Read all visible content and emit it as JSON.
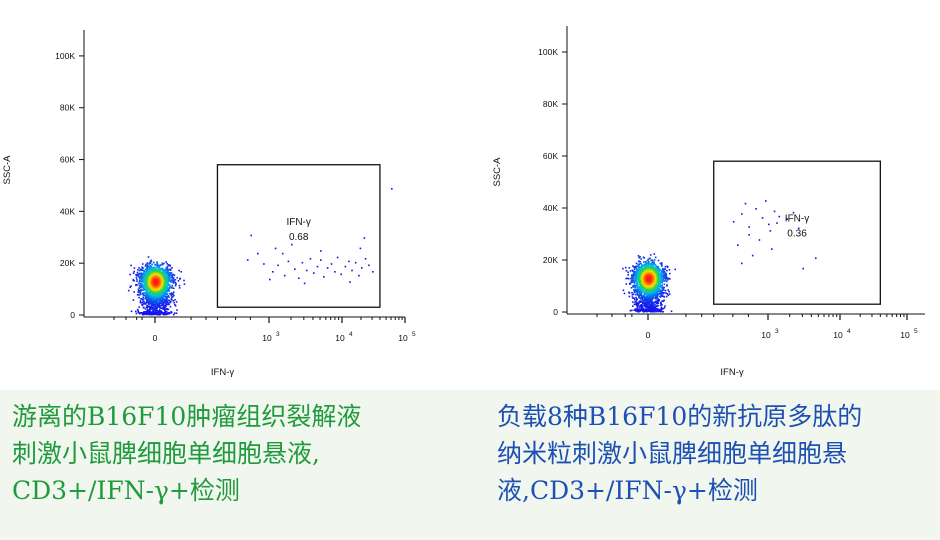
{
  "colors": {
    "caption_left": "#1f9a3d",
    "caption_right": "#1e50b4",
    "gate": "#111111",
    "density_low": "#1010ee",
    "density_high": "#ff1a10"
  },
  "captions": {
    "left": {
      "line1": "游离的B16F10肿瘤组织裂解液",
      "line2": "刺激小鼠脾细胞单细胞悬液,",
      "line3": "CD3+/IFN-γ+检测"
    },
    "right": {
      "line1": "负载8种B16F10的新抗原多肽的",
      "line2": "纳米粒刺激小鼠脾细胞单细胞悬",
      "line3": "液,CD3+/IFN-γ+检测"
    }
  },
  "chart_data": [
    {
      "type": "scatter",
      "title": "",
      "xlabel": "IFN-γ",
      "ylabel": "SSC-A",
      "x_scale": "biexponential",
      "x_ticks": [
        "0",
        "10^3",
        "10^4",
        "10^5"
      ],
      "y_ticks": [
        "0",
        "20K",
        "40K",
        "60K",
        "80K",
        "100K"
      ],
      "ylim": [
        0,
        110000
      ],
      "gate": {
        "label": "IFN-γ",
        "value": "0.68",
        "x_range": [
          300,
          40000
        ],
        "y_range": [
          3000,
          58000
        ]
      },
      "population": {
        "x_center": 0,
        "y_center": 13000,
        "y_max": 52000
      },
      "gated_events": [
        [
          900,
          20000
        ],
        [
          1100,
          17000
        ],
        [
          1300,
          19500
        ],
        [
          1600,
          15500
        ],
        [
          1800,
          21000
        ],
        [
          2200,
          18000
        ],
        [
          2500,
          14500
        ],
        [
          2800,
          20500
        ],
        [
          3200,
          17500
        ],
        [
          3600,
          22000
        ],
        [
          4000,
          16500
        ],
        [
          4500,
          19000
        ],
        [
          5000,
          21500
        ],
        [
          5500,
          15000
        ],
        [
          6200,
          18500
        ],
        [
          7000,
          20000
        ],
        [
          7800,
          17000
        ],
        [
          8500,
          22500
        ],
        [
          9500,
          16000
        ],
        [
          11000,
          19000
        ],
        [
          12500,
          21000
        ],
        [
          14000,
          17500
        ],
        [
          16000,
          20500
        ],
        [
          18000,
          15500
        ],
        [
          20000,
          18500
        ],
        [
          23000,
          22000
        ],
        [
          26000,
          19500
        ],
        [
          30000,
          17000
        ],
        [
          1200,
          26000
        ],
        [
          1500,
          24000
        ],
        [
          2000,
          27500
        ],
        [
          700,
          31000
        ],
        [
          5000,
          25000
        ],
        [
          19000,
          26000
        ],
        [
          22000,
          30000
        ],
        [
          800,
          24000
        ],
        [
          650,
          21500
        ],
        [
          1000,
          14000
        ],
        [
          3000,
          12500
        ],
        [
          13000,
          13000
        ],
        [
          60000,
          49000
        ]
      ]
    },
    {
      "type": "scatter",
      "title": "",
      "xlabel": "IFN-γ",
      "ylabel": "SSC-A",
      "x_scale": "biexponential",
      "x_ticks": [
        "0",
        "10^3",
        "10^4",
        "10^5"
      ],
      "y_ticks": [
        "0",
        "20K",
        "40K",
        "60K",
        "80K",
        "100K"
      ],
      "ylim": [
        0,
        110000
      ],
      "gate": {
        "label": "IFN-γ",
        "value": "0.36",
        "x_range": [
          300,
          40000
        ],
        "y_range": [
          3000,
          58000
        ]
      },
      "population": {
        "x_center": 0,
        "y_center": 13000,
        "y_max": 48000
      },
      "gated_events": [
        [
          500,
          35000
        ],
        [
          600,
          38000
        ],
        [
          700,
          33000
        ],
        [
          800,
          40000
        ],
        [
          900,
          36500
        ],
        [
          1000,
          34000
        ],
        [
          1200,
          39000
        ],
        [
          1400,
          37000
        ],
        [
          700,
          30000
        ],
        [
          850,
          28000
        ],
        [
          1050,
          31500
        ],
        [
          550,
          26000
        ],
        [
          650,
          42000
        ],
        [
          950,
          43000
        ],
        [
          1300,
          34500
        ],
        [
          1800,
          36000
        ],
        [
          2200,
          38500
        ],
        [
          2600,
          32500
        ],
        [
          750,
          22000
        ],
        [
          1100,
          24500
        ],
        [
          3000,
          17000
        ],
        [
          600,
          19000
        ],
        [
          4500,
          21000
        ]
      ]
    }
  ]
}
